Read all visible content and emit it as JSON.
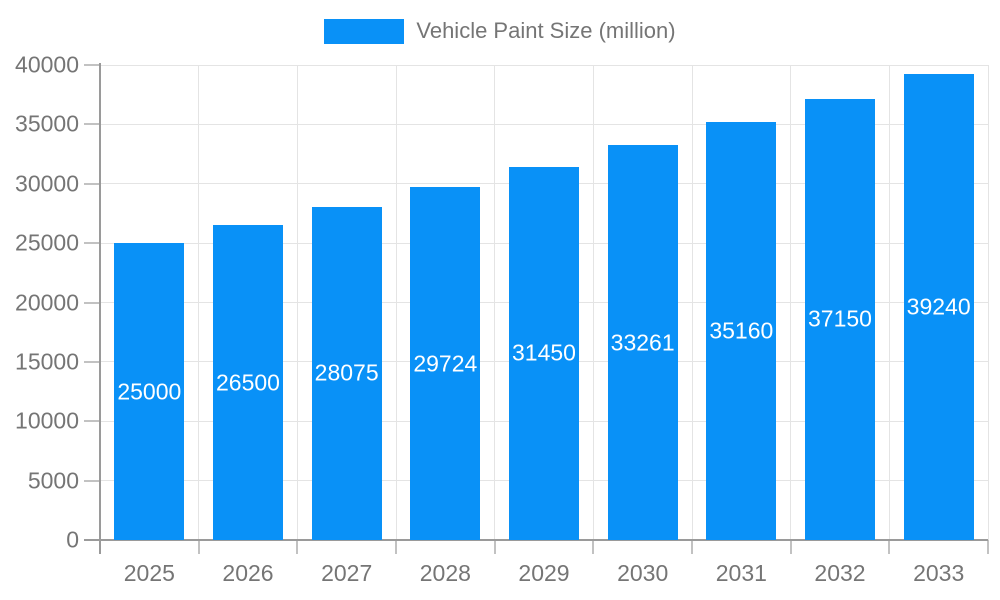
{
  "chart_data": {
    "type": "bar",
    "title": "Vehicle Paint Size (million)",
    "legend": {
      "label": "Vehicle Paint Size (million)",
      "position": "top-center"
    },
    "categories": [
      "2025",
      "2026",
      "2027",
      "2028",
      "2029",
      "2030",
      "2031",
      "2032",
      "2033"
    ],
    "series": [
      {
        "name": "Vehicle Paint Size (million)",
        "values": [
          25000,
          26500,
          28075,
          29724,
          31450,
          33261,
          35160,
          37150,
          39240
        ]
      }
    ],
    "value_labels_shown": true,
    "xlabel": "",
    "ylabel": "",
    "ylim": [
      0,
      40000
    ],
    "ytick_step": 5000,
    "yticks": [
      0,
      5000,
      10000,
      15000,
      20000,
      25000,
      30000,
      35000,
      40000
    ],
    "grid": "horizontal and vertical light gray",
    "colors": {
      "bar": "#0991f7",
      "value_label_text": "#ffffff",
      "axis_text": "#757575",
      "axis_line": "#9a9a9a",
      "gridline": "#e4e4e4",
      "tick": "#c2c2c2",
      "background": "#ffffff"
    }
  }
}
